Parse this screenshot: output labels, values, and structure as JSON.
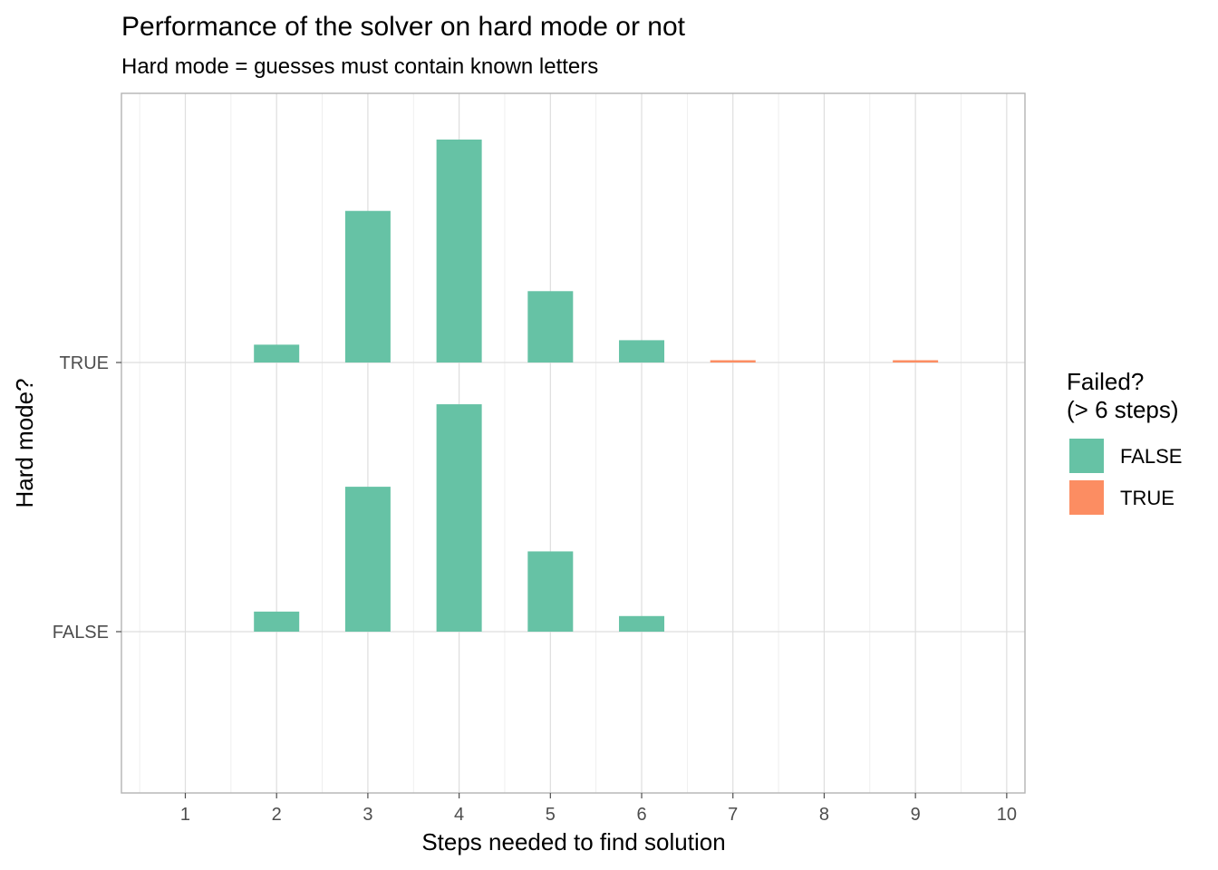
{
  "chart_data": {
    "type": "bar",
    "title": "Performance of the solver on hard mode or not",
    "subtitle": "Hard mode = guesses must contain known letters",
    "xlabel": "Steps needed to find solution",
    "ylabel": "Hard mode?",
    "x_ticks": [
      "1",
      "2",
      "3",
      "4",
      "5",
      "6",
      "7",
      "8",
      "9",
      "10"
    ],
    "xlim": [
      0.3,
      10.2
    ],
    "y_categories": [
      "FALSE",
      "TRUE"
    ],
    "legend": {
      "title_lines": [
        "Failed?",
        "(> 6 steps)"
      ],
      "position": "right",
      "entries": [
        {
          "label": "FALSE",
          "color": "#66C2A5"
        },
        {
          "label": "TRUE",
          "color": "#FC8D62"
        }
      ]
    },
    "grid": true,
    "series": [
      {
        "hard_mode": "TRUE",
        "failed": "FALSE",
        "x": [
          2,
          3,
          4,
          5,
          6
        ],
        "values": [
          0.08,
          0.68,
          1.0,
          0.32,
          0.1
        ]
      },
      {
        "hard_mode": "TRUE",
        "failed": "TRUE",
        "x": [
          7,
          9
        ],
        "values": [
          0.01,
          0.01
        ]
      },
      {
        "hard_mode": "FALSE",
        "failed": "FALSE",
        "x": [
          2,
          3,
          4,
          5,
          6
        ],
        "values": [
          0.09,
          0.65,
          1.02,
          0.36,
          0.07
        ]
      }
    ]
  }
}
